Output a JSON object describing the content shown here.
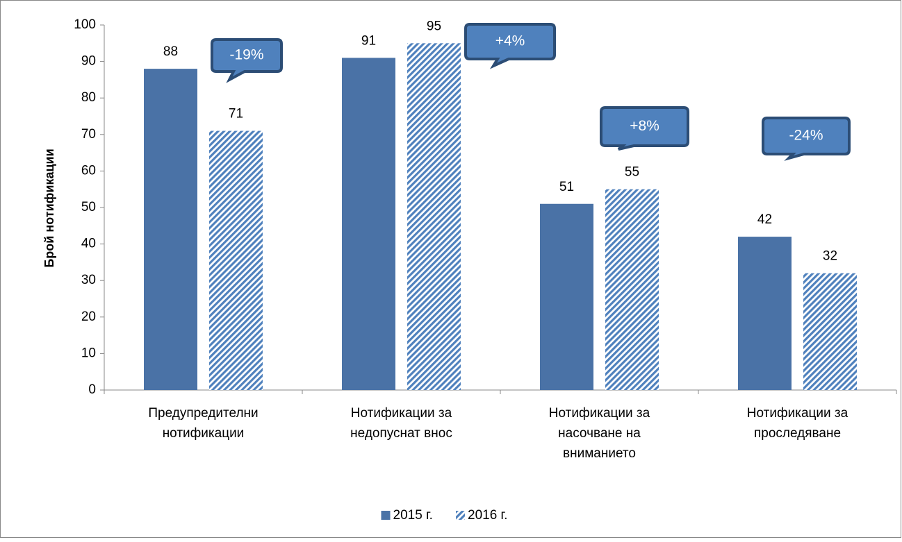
{
  "chart_data": {
    "type": "bar",
    "y_label": "Брой нотификации",
    "categories": [
      "Предупредителни нотификации",
      "Нотификации за недопуснат внос",
      "Нотификации за насочване на вниманието",
      "Нотификации за проследяване"
    ],
    "series": [
      {
        "name": "2015 г.",
        "color": "#4a72a6",
        "values": [
          88,
          91,
          51,
          42
        ]
      },
      {
        "name": "2016 г.",
        "color": "#4f81bd",
        "hatch": true,
        "values": [
          71,
          95,
          55,
          32
        ]
      }
    ],
    "annotations": [
      "-19%",
      "+4%",
      "+8%",
      "-24%"
    ],
    "ylim": [
      0,
      100
    ],
    "yticks": [
      0,
      10,
      20,
      30,
      40,
      50,
      60,
      70,
      80,
      90,
      100
    ],
    "legend": "bottom"
  }
}
